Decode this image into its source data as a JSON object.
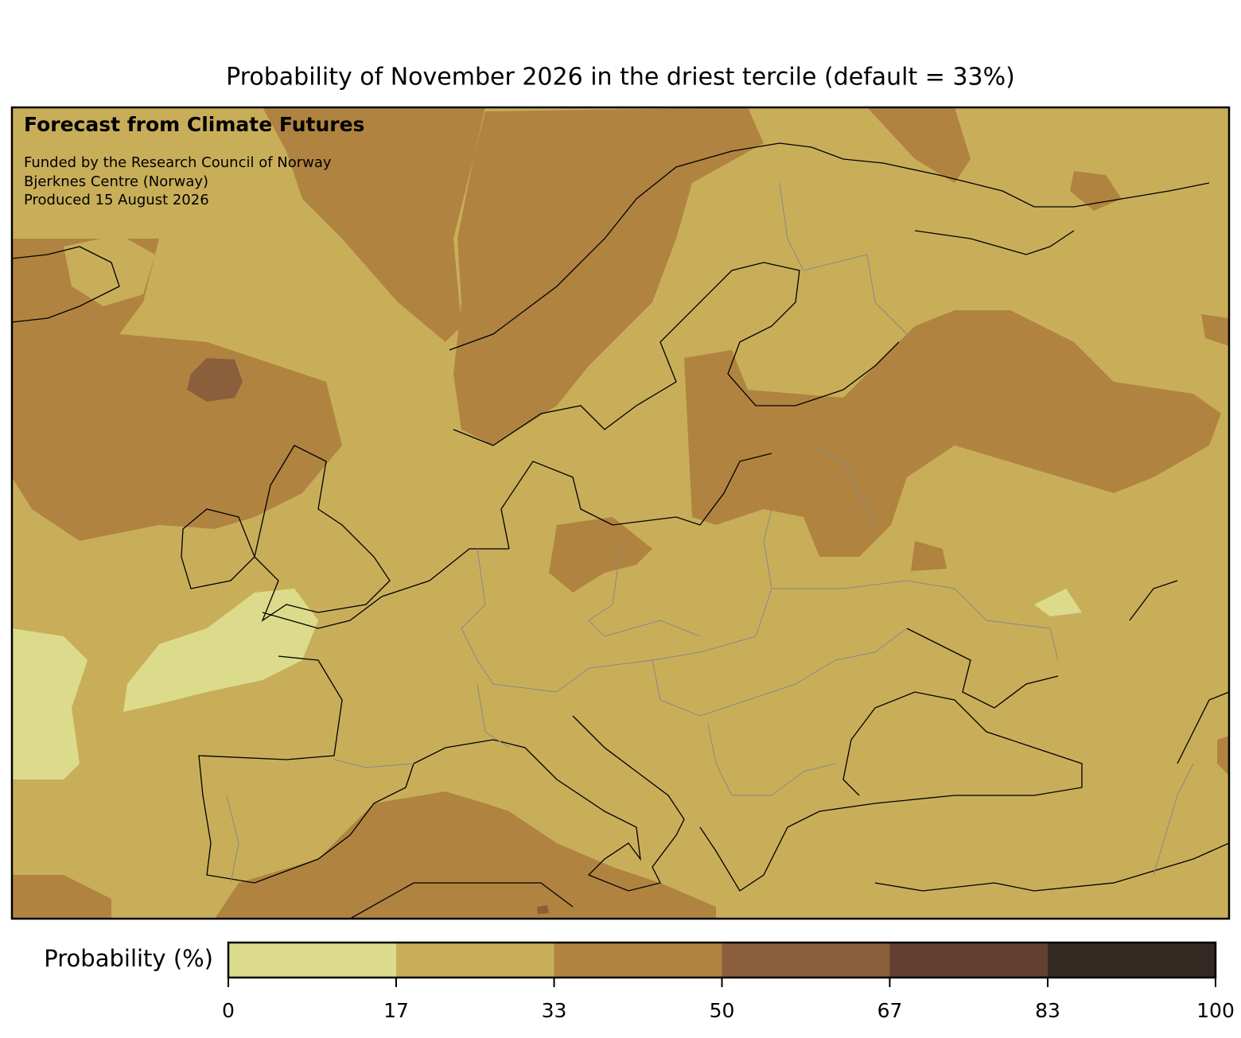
{
  "title": "Probability of November 2026 in the driest tercile (default = 33%)",
  "annotations": {
    "heading": "Forecast from Climate Futures",
    "lines": [
      "Funded by the Research Council of Norway",
      "Bjerknes Centre (Norway)",
      "Produced 15 August 2026"
    ]
  },
  "colorbar": {
    "label": "Probability (%)",
    "ticks": [
      0,
      17,
      33,
      50,
      67,
      83,
      100
    ],
    "colors": [
      "#dcdb8c",
      "#c9ae5a",
      "#b08440",
      "#8b5e3c",
      "#623f30",
      "#352923"
    ]
  }
}
